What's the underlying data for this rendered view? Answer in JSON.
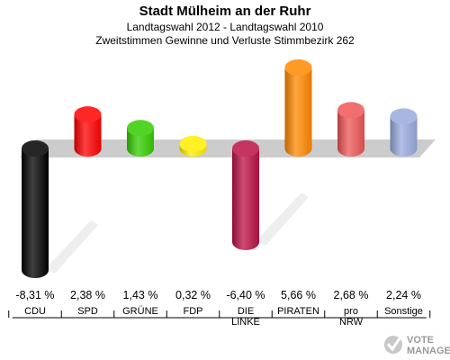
{
  "chart_data": {
    "type": "bar",
    "title": "Stadt Mülheim an der Ruhr",
    "subtitle_lines": [
      "Landtagswahl 2012 - Landtagswahl 2010",
      "Zweitstimmen Gewinne und Verluste Stimmbezirk 262"
    ],
    "categories": [
      [
        "CDU"
      ],
      [
        "SPD"
      ],
      [
        "GRÜNE"
      ],
      [
        "FDP"
      ],
      [
        "DIE",
        "LINKE"
      ],
      [
        "PIRATEN"
      ],
      [
        "pro",
        "NRW"
      ],
      [
        "Sonstige"
      ]
    ],
    "values": [
      -8.31,
      2.38,
      1.43,
      0.32,
      -6.4,
      5.66,
      2.68,
      2.24
    ],
    "value_labels": [
      "-8,31 %",
      "2,38 %",
      "1,43 %",
      "0,32 %",
      "-6,40 %",
      "5,66 %",
      "2,68 %",
      "2,24 %"
    ],
    "colors": [
      "#000000",
      "#ff0000",
      "#33cc00",
      "#ffee00",
      "#bb1144",
      "#ff8800",
      "#ee5555",
      "#99aadd"
    ],
    "ylim": [
      -8.31,
      5.66
    ]
  },
  "logo": {
    "text": "VOTE",
    "subtext": "MANAGER"
  }
}
